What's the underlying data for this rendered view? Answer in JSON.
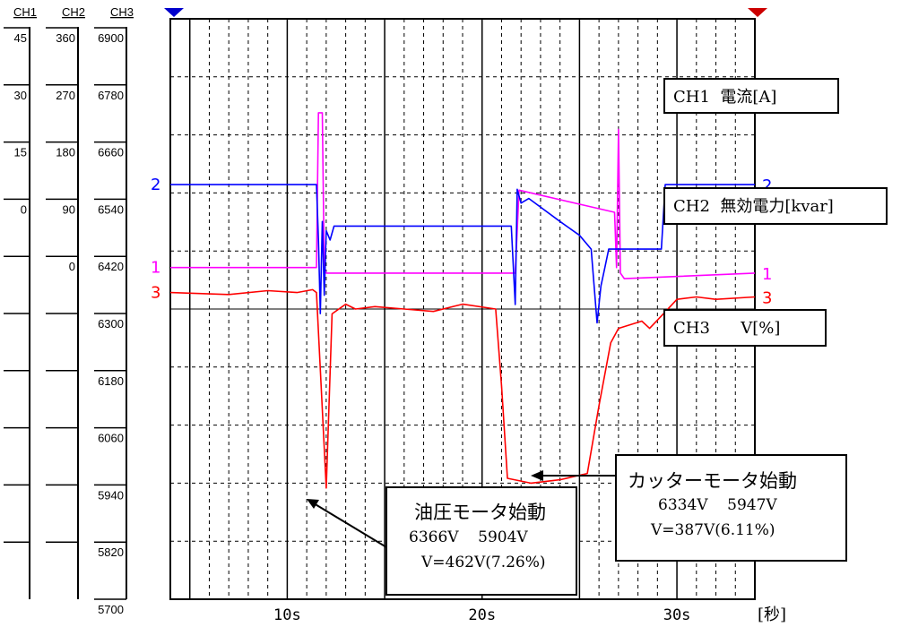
{
  "chart_data": {
    "type": "line",
    "x_unit_label": "[秒]",
    "x_ticks": [
      "10s",
      "20s",
      "30s"
    ],
    "x_tick_values": [
      10,
      20,
      30
    ],
    "xlim": [
      4,
      34
    ],
    "scale_columns": [
      {
        "name": "CH1",
        "ticks": [
          "45",
          "30",
          "15",
          "0",
          "",
          "",
          "",
          "",
          "",
          ""
        ]
      },
      {
        "name": "CH2",
        "ticks": [
          "360",
          "270",
          "180",
          "90",
          "0",
          "",
          "",
          "",
          "",
          ""
        ]
      },
      {
        "name": "CH3",
        "ticks": [
          "6900",
          "6780",
          "6660",
          "6540",
          "6420",
          "6300",
          "6180",
          "6060",
          "5940",
          "5820",
          "5700"
        ]
      }
    ],
    "series": [
      {
        "marker": "1",
        "color": "#ff00ff",
        "ylim": [
          -60,
          45
        ],
        "x": [
          4,
          11.5,
          11.6,
          11.8,
          11.9,
          12.0,
          21.7,
          21.9,
          26.8,
          26.9,
          27.0,
          27.1,
          27.3,
          34
        ],
        "y": [
          0,
          0,
          28,
          28,
          0,
          -1,
          -1,
          14,
          10,
          0,
          25,
          -1,
          -2,
          -1
        ]
      },
      {
        "marker": "2",
        "color": "#0000ff",
        "ylim": [
          -270,
          360
        ],
        "x": [
          4,
          11.5,
          11.6,
          11.7,
          11.8,
          11.9,
          12.0,
          12.2,
          12.4,
          21.5,
          21.7,
          21.8,
          22.0,
          22.4,
          24.0,
          25.0,
          25.6,
          25.9,
          26.1,
          26.3,
          26.5,
          29.2,
          29.4,
          34
        ],
        "y": [
          180,
          180,
          120,
          40,
          140,
          60,
          130,
          120,
          135,
          135,
          50,
          175,
          160,
          165,
          140,
          125,
          110,
          30,
          70,
          90,
          110,
          110,
          180,
          180
        ]
      },
      {
        "marker": "3",
        "color": "#ff0000",
        "ylim": [
          5700,
          6900
        ],
        "x": [
          4,
          7,
          9,
          10.5,
          11.3,
          11.5,
          12.0,
          12.3,
          13.0,
          13.5,
          14.5,
          16,
          17.5,
          19,
          20.7,
          21.0,
          21.3,
          22.5,
          24,
          25.4,
          26.0,
          26.6,
          27.0,
          28.2,
          28.6,
          29.3,
          30.0,
          31,
          32,
          34
        ],
        "y": [
          6334,
          6330,
          6338,
          6334,
          6340,
          6334,
          5930,
          6290,
          6310,
          6300,
          6305,
          6300,
          6295,
          6310,
          6300,
          6140,
          5950,
          5940,
          5947,
          5960,
          6100,
          6230,
          6260,
          6275,
          6260,
          6290,
          6320,
          6325,
          6320,
          6325
        ]
      }
    ]
  },
  "legend_labels": [
    "CH1  電流[A]",
    "CH2  無効電力[kvar]",
    "CH3      V[%]"
  ],
  "annotations": [
    {
      "title": "油圧モータ始動",
      "values": "6366V    5904V",
      "delta": "V=462V(7.26%)"
    },
    {
      "title": "カッターモータ始動",
      "values": "6334V    5947V",
      "delta": "V=387V(6.11%)"
    }
  ],
  "colors": {
    "ch1": "#ff00ff",
    "ch2": "#0000ff",
    "ch3": "#ff0000",
    "start_marker": "#0000cc",
    "end_marker": "#cc0000"
  }
}
